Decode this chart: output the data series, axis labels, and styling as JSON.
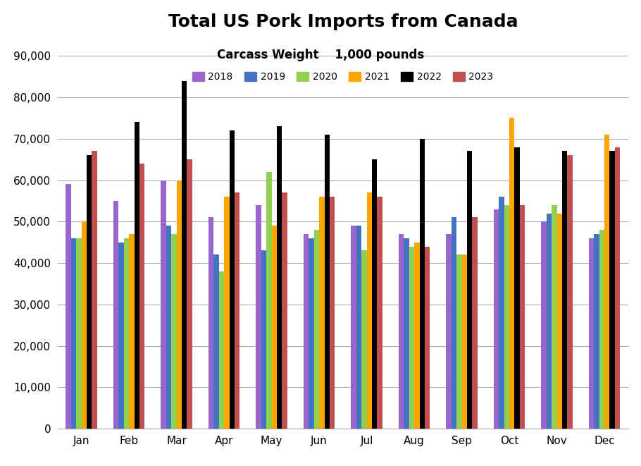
{
  "title": "Total US Pork Imports from Canada",
  "subtitle": "Carcass Weight    1,000 pounds",
  "months": [
    "Jan",
    "Feb",
    "Mar",
    "Apr",
    "May",
    "Jun",
    "Jul",
    "Aug",
    "Sep",
    "Oct",
    "Nov",
    "Dec"
  ],
  "series": {
    "2018": [
      59000,
      55000,
      60000,
      51000,
      54000,
      47000,
      49000,
      47000,
      47000,
      53000,
      50000,
      46000
    ],
    "2019": [
      46000,
      45000,
      49000,
      42000,
      43000,
      46000,
      49000,
      46000,
      51000,
      56000,
      52000,
      47000
    ],
    "2020": [
      46000,
      46000,
      47000,
      38000,
      62000,
      48000,
      43000,
      44000,
      42000,
      54000,
      54000,
      48000
    ],
    "2021": [
      50000,
      47000,
      60000,
      56000,
      49000,
      56000,
      57000,
      45000,
      42000,
      75000,
      52000,
      71000
    ],
    "2022": [
      66000,
      74000,
      84000,
      72000,
      73000,
      71000,
      65000,
      70000,
      67000,
      68000,
      67000,
      67000
    ],
    "2023": [
      67000,
      64000,
      65000,
      57000,
      57000,
      56000,
      56000,
      44000,
      51000,
      54000,
      66000,
      68000
    ]
  },
  "colors": {
    "2018": "#9966CC",
    "2019": "#4472C4",
    "2020": "#92D050",
    "2021": "#FFA500",
    "2022": "#000000",
    "2023": "#C0504D"
  },
  "ylim": [
    0,
    90000
  ],
  "yticks": [
    0,
    10000,
    20000,
    30000,
    40000,
    50000,
    60000,
    70000,
    80000,
    90000
  ],
  "background_color": "#FFFFFF",
  "grid_color": "#AAAAAA",
  "title_fontsize": 18,
  "subtitle_fontsize": 12,
  "tick_fontsize": 11,
  "legend_fontsize": 10
}
